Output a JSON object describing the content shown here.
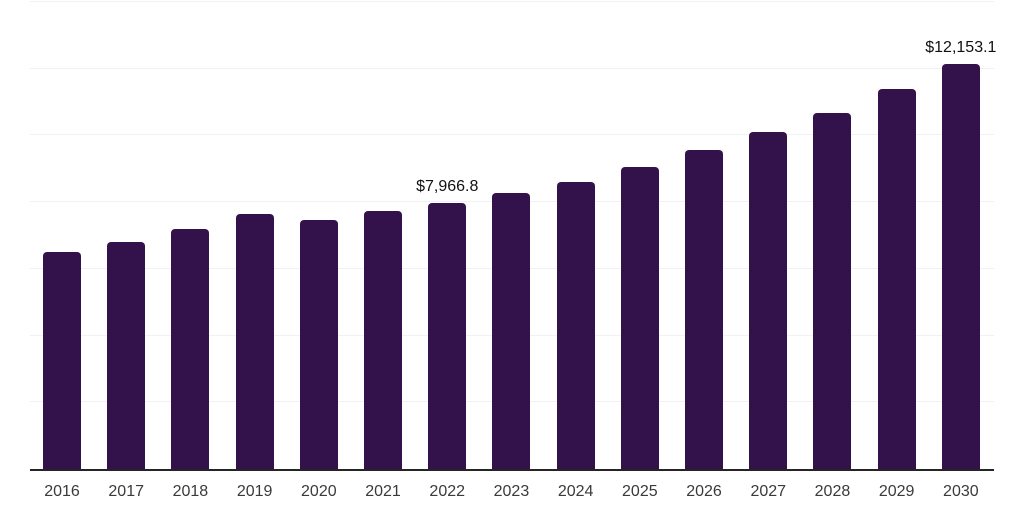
{
  "chart_data": {
    "type": "bar",
    "title": "",
    "xlabel": "",
    "ylabel": "",
    "categories": [
      "2016",
      "2017",
      "2018",
      "2019",
      "2020",
      "2021",
      "2022",
      "2023",
      "2024",
      "2025",
      "2026",
      "2027",
      "2028",
      "2029",
      "2030"
    ],
    "values": [
      6520,
      6820,
      7200,
      7650,
      7470,
      7740,
      7966.8,
      8270,
      8600,
      9050,
      9550,
      10090,
      10680,
      11400,
      12153.1
    ],
    "value_labels": [
      "",
      "",
      "",
      "",
      "",
      "",
      "$7,966.8",
      "",
      "",
      "",
      "",
      "",
      "",
      "",
      "$12,153.1"
    ],
    "ylim": [
      0,
      14000
    ],
    "y_gridline_step": 2000,
    "grid": "horizontal-light",
    "legend": "none",
    "y_axis_tick_labels_visible": false,
    "colors": {
      "bar": "#33114a",
      "axis_line": "#252525",
      "gridline": "#f1f1f4",
      "value_label": "#111111",
      "tick_label": "#3a3a3a",
      "background": "#ffffff"
    }
  }
}
